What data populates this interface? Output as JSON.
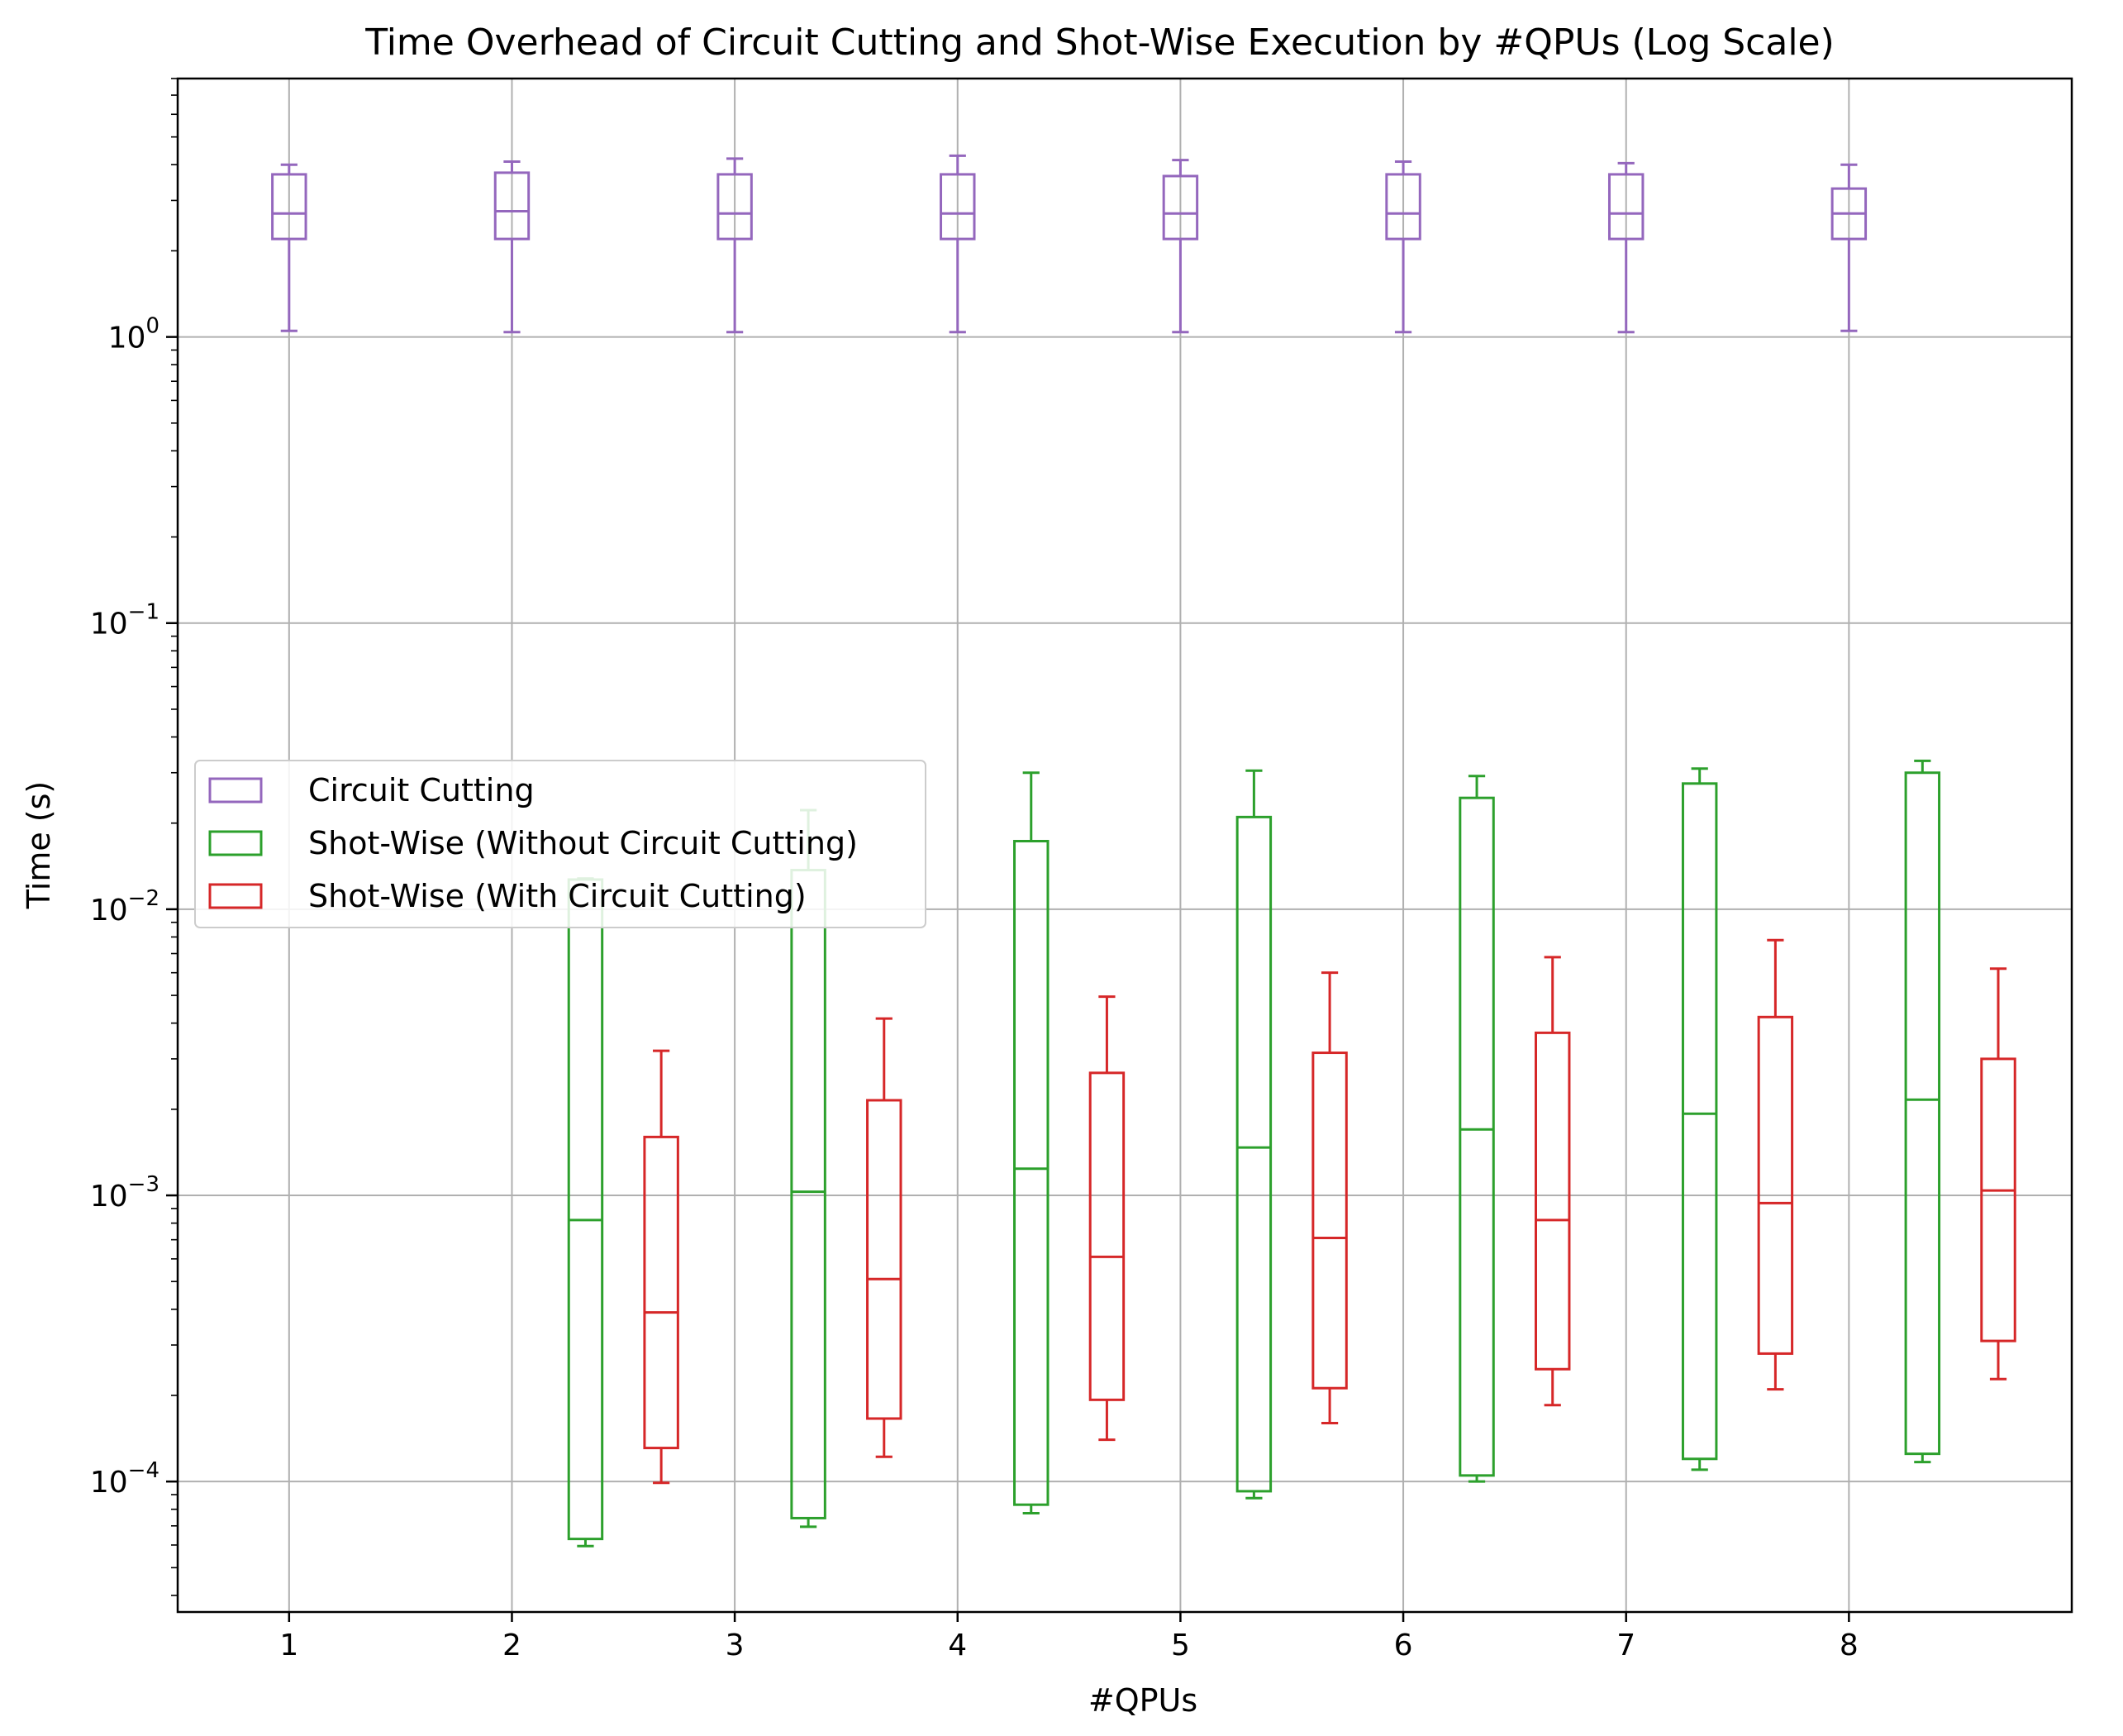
{
  "chart_data": {
    "type": "box",
    "title": "Time Overhead of Circuit Cutting and Shot-Wise Execution by #QPUs (Log Scale)",
    "xlabel": "#QPUs",
    "ylabel": "Time (s)",
    "yscale": "log",
    "ylim": [
      3.5e-05,
      8
    ],
    "xlim": [
      0.5,
      9.0
    ],
    "grid": true,
    "legend_position": "center-left",
    "categories": [
      "1",
      "2",
      "3",
      "4",
      "5",
      "6",
      "7",
      "8"
    ],
    "y_tick_labels": [
      {
        "base": "10",
        "exp": "0",
        "value": 1
      },
      {
        "base": "10",
        "exp": "−1",
        "value": 0.1
      },
      {
        "base": "10",
        "exp": "−2",
        "value": 0.01
      },
      {
        "base": "10",
        "exp": "−3",
        "value": 0.001
      },
      {
        "base": "10",
        "exp": "−4",
        "value": 0.0001
      }
    ],
    "series": [
      {
        "name": "Circuit Cutting",
        "color": "#9467bd",
        "offset": 0.0,
        "boxes": [
          {
            "x": 1,
            "whislo": 1.05,
            "q1": 2.2,
            "med": 2.7,
            "q3": 3.7,
            "whishi": 4.0
          },
          {
            "x": 2,
            "whislo": 1.04,
            "q1": 2.2,
            "med": 2.75,
            "q3": 3.75,
            "whishi": 4.1
          },
          {
            "x": 3,
            "whislo": 1.04,
            "q1": 2.2,
            "med": 2.7,
            "q3": 3.7,
            "whishi": 4.2
          },
          {
            "x": 4,
            "whislo": 1.04,
            "q1": 2.2,
            "med": 2.7,
            "q3": 3.7,
            "whishi": 4.3
          },
          {
            "x": 5,
            "whislo": 1.04,
            "q1": 2.2,
            "med": 2.7,
            "q3": 3.65,
            "whishi": 4.15
          },
          {
            "x": 6,
            "whislo": 1.04,
            "q1": 2.2,
            "med": 2.7,
            "q3": 3.7,
            "whishi": 4.1
          },
          {
            "x": 7,
            "whislo": 1.04,
            "q1": 2.2,
            "med": 2.7,
            "q3": 3.7,
            "whishi": 4.05
          },
          {
            "x": 8,
            "whislo": 1.05,
            "q1": 2.2,
            "med": 2.7,
            "q3": 3.3,
            "whishi": 4.0
          }
        ]
      },
      {
        "name": "Shot-Wise (Without Circuit Cutting)",
        "color": "#2ca02c",
        "offset": 0.33,
        "boxes": [
          {
            "x": 2,
            "whislo": 5.95e-05,
            "q1": 6.3e-05,
            "med": 0.00082,
            "q3": 0.0127,
            "whishi": 0.0128
          },
          {
            "x": 3,
            "whislo": 6.95e-05,
            "q1": 7.45e-05,
            "med": 0.00103,
            "q3": 0.0137,
            "whishi": 0.0222
          },
          {
            "x": 4,
            "whislo": 7.75e-05,
            "q1": 8.3e-05,
            "med": 0.00124,
            "q3": 0.0173,
            "whishi": 0.03
          },
          {
            "x": 5,
            "whislo": 8.75e-05,
            "q1": 9.25e-05,
            "med": 0.00147,
            "q3": 0.021,
            "whishi": 0.0305
          },
          {
            "x": 6,
            "whislo": 0.0001,
            "q1": 0.000105,
            "med": 0.0017,
            "q3": 0.0245,
            "whishi": 0.0292
          },
          {
            "x": 7,
            "whislo": 0.00011,
            "q1": 0.00012,
            "med": 0.00193,
            "q3": 0.0275,
            "whishi": 0.031
          },
          {
            "x": 8,
            "whislo": 0.000117,
            "q1": 0.000125,
            "med": 0.00216,
            "q3": 0.03,
            "whishi": 0.033
          }
        ]
      },
      {
        "name": "Shot-Wise (With Circuit Cutting)",
        "color": "#d62728",
        "offset": 0.67,
        "boxes": [
          {
            "x": 2,
            "whislo": 9.9e-05,
            "q1": 0.000131,
            "med": 0.00039,
            "q3": 0.0016,
            "whishi": 0.0032
          },
          {
            "x": 3,
            "whislo": 0.000122,
            "q1": 0.000166,
            "med": 0.00051,
            "q3": 0.00215,
            "whishi": 0.00415
          },
          {
            "x": 4,
            "whislo": 0.00014,
            "q1": 0.000193,
            "med": 0.00061,
            "q3": 0.00268,
            "whishi": 0.00495
          },
          {
            "x": 5,
            "whislo": 0.00016,
            "q1": 0.000212,
            "med": 0.00071,
            "q3": 0.00315,
            "whishi": 0.006
          },
          {
            "x": 6,
            "whislo": 0.000185,
            "q1": 0.000247,
            "med": 0.00082,
            "q3": 0.0037,
            "whishi": 0.0068
          },
          {
            "x": 7,
            "whislo": 0.00021,
            "q1": 0.00028,
            "med": 0.00094,
            "q3": 0.0042,
            "whishi": 0.0078
          },
          {
            "x": 8,
            "whislo": 0.000228,
            "q1": 0.00031,
            "med": 0.00104,
            "q3": 0.003,
            "whishi": 0.0062
          }
        ]
      }
    ]
  }
}
